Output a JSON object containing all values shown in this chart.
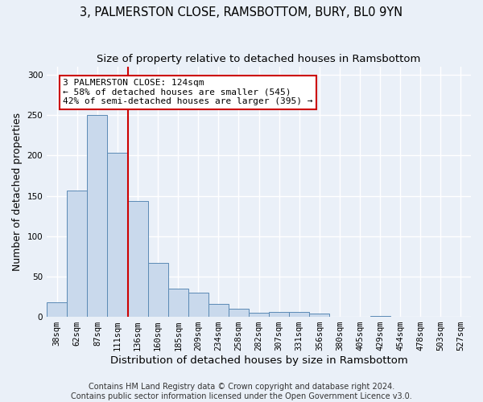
{
  "title1": "3, PALMERSTON CLOSE, RAMSBOTTOM, BURY, BL0 9YN",
  "title2": "Size of property relative to detached houses in Ramsbottom",
  "xlabel": "Distribution of detached houses by size in Ramsbottom",
  "ylabel": "Number of detached properties",
  "categories": [
    "38sqm",
    "62sqm",
    "87sqm",
    "111sqm",
    "136sqm",
    "160sqm",
    "185sqm",
    "209sqm",
    "234sqm",
    "258sqm",
    "282sqm",
    "307sqm",
    "331sqm",
    "356sqm",
    "380sqm",
    "405sqm",
    "429sqm",
    "454sqm",
    "478sqm",
    "503sqm",
    "527sqm"
  ],
  "values": [
    18,
    157,
    250,
    203,
    144,
    67,
    35,
    30,
    16,
    10,
    5,
    6,
    6,
    4,
    0,
    0,
    1,
    0,
    0,
    0,
    0
  ],
  "bar_color": "#c9d9ec",
  "bar_edge_color": "#5b8ab5",
  "vline_x": 3.5,
  "vline_color": "#cc0000",
  "annotation_line1": "3 PALMERSTON CLOSE: 124sqm",
  "annotation_line2": "← 58% of detached houses are smaller (545)",
  "annotation_line3": "42% of semi-detached houses are larger (395) →",
  "annotation_box_color": "#ffffff",
  "annotation_box_edge": "#cc0000",
  "ylim": [
    0,
    310
  ],
  "yticks": [
    0,
    50,
    100,
    150,
    200,
    250,
    300
  ],
  "footer": "Contains HM Land Registry data © Crown copyright and database right 2024.\nContains public sector information licensed under the Open Government Licence v3.0.",
  "bg_color": "#eaf0f8",
  "grid_color": "#ffffff",
  "title1_fontsize": 10.5,
  "title2_fontsize": 9.5,
  "xlabel_fontsize": 9.5,
  "ylabel_fontsize": 9,
  "footer_fontsize": 7,
  "tick_fontsize": 7.5,
  "annot_fontsize": 8
}
